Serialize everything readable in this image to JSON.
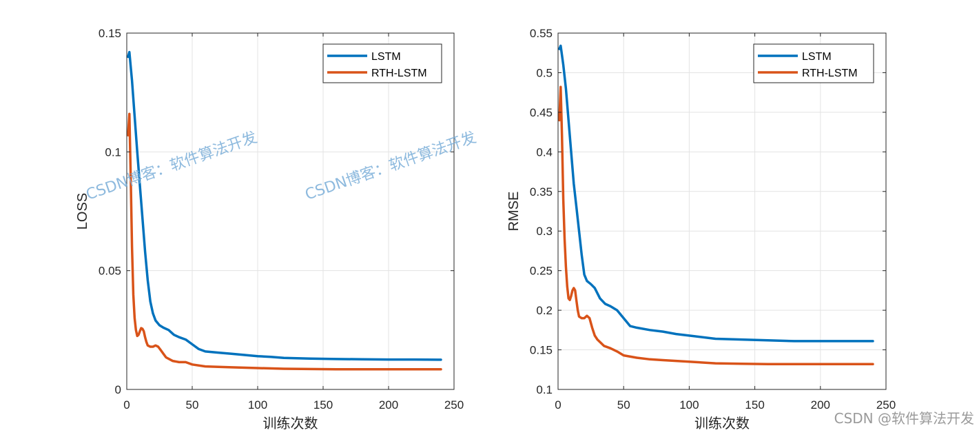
{
  "chart_data": [
    {
      "type": "line",
      "title": "",
      "xlabel": "训练次数",
      "ylabel": "LOSS",
      "xlim": [
        0,
        250
      ],
      "ylim": [
        0,
        0.15
      ],
      "xticks": [
        0,
        50,
        100,
        150,
        200,
        250
      ],
      "yticks": [
        0,
        0.05,
        0.1,
        0.15
      ],
      "xtick_labels": [
        "0",
        "50",
        "100",
        "150",
        "200",
        "250"
      ],
      "ytick_labels": [
        "0",
        "0.05",
        "0.1",
        "0.15"
      ],
      "grid": true,
      "legend_position": "top-right",
      "series": [
        {
          "name": "LSTM",
          "color": "#0072BD",
          "x": [
            1,
            2,
            4,
            6,
            8,
            10,
            12,
            14,
            16,
            18,
            20,
            22,
            25,
            28,
            32,
            36,
            40,
            45,
            50,
            55,
            60,
            70,
            80,
            90,
            100,
            110,
            120,
            140,
            160,
            180,
            200,
            220,
            240
          ],
          "y": [
            0.14,
            0.142,
            0.13,
            0.115,
            0.1,
            0.086,
            0.072,
            0.058,
            0.046,
            0.037,
            0.032,
            0.029,
            0.027,
            0.026,
            0.025,
            0.023,
            0.022,
            0.021,
            0.019,
            0.017,
            0.016,
            0.0155,
            0.015,
            0.0145,
            0.014,
            0.0137,
            0.0133,
            0.013,
            0.0128,
            0.0127,
            0.0126,
            0.0126,
            0.0125
          ]
        },
        {
          "name": "RTH-LSTM",
          "color": "#D95319",
          "x": [
            1,
            2,
            3,
            4,
            5,
            6,
            7,
            8,
            9,
            10,
            11,
            12,
            13,
            14,
            15,
            16,
            18,
            20,
            22,
            24,
            26,
            28,
            30,
            35,
            40,
            45,
            50,
            60,
            70,
            80,
            100,
            120,
            140,
            160,
            180,
            200,
            220,
            240
          ],
          "y": [
            0.107,
            0.116,
            0.09,
            0.06,
            0.04,
            0.03,
            0.025,
            0.0225,
            0.023,
            0.0245,
            0.0258,
            0.0255,
            0.0245,
            0.022,
            0.02,
            0.0185,
            0.018,
            0.018,
            0.0185,
            0.018,
            0.0165,
            0.015,
            0.0135,
            0.012,
            0.0115,
            0.0115,
            0.0105,
            0.0097,
            0.0095,
            0.0093,
            0.009,
            0.0087,
            0.0086,
            0.0085,
            0.0085,
            0.0085,
            0.0085,
            0.0085
          ]
        }
      ]
    },
    {
      "type": "line",
      "title": "",
      "xlabel": "训练次数",
      "ylabel": "RMSE",
      "xlim": [
        0,
        250
      ],
      "ylim": [
        0.1,
        0.55
      ],
      "xticks": [
        0,
        50,
        100,
        150,
        200,
        250
      ],
      "yticks": [
        0.1,
        0.15,
        0.2,
        0.25,
        0.3,
        0.35,
        0.4,
        0.45,
        0.5,
        0.55
      ],
      "xtick_labels": [
        "0",
        "50",
        "100",
        "150",
        "200",
        "250"
      ],
      "ytick_labels": [
        "0.1",
        "0.15",
        "0.2",
        "0.25",
        "0.3",
        "0.35",
        "0.4",
        "0.45",
        "0.5",
        "0.55"
      ],
      "grid": true,
      "legend_position": "top-right",
      "series": [
        {
          "name": "LSTM",
          "color": "#0072BD",
          "x": [
            1,
            2,
            4,
            6,
            8,
            10,
            12,
            14,
            16,
            18,
            20,
            22,
            25,
            28,
            32,
            36,
            40,
            45,
            50,
            55,
            60,
            70,
            80,
            90,
            100,
            120,
            140,
            160,
            180,
            200,
            220,
            240
          ],
          "y": [
            0.53,
            0.534,
            0.51,
            0.48,
            0.44,
            0.4,
            0.36,
            0.33,
            0.3,
            0.27,
            0.245,
            0.237,
            0.233,
            0.228,
            0.215,
            0.208,
            0.205,
            0.2,
            0.19,
            0.18,
            0.178,
            0.175,
            0.173,
            0.17,
            0.168,
            0.164,
            0.163,
            0.162,
            0.161,
            0.161,
            0.161,
            0.161
          ]
        },
        {
          "name": "RTH-LSTM",
          "color": "#D95319",
          "x": [
            1,
            2,
            3,
            4,
            5,
            6,
            7,
            8,
            9,
            10,
            11,
            12,
            13,
            14,
            15,
            16,
            18,
            20,
            22,
            24,
            26,
            28,
            30,
            35,
            40,
            45,
            50,
            60,
            70,
            80,
            100,
            120,
            140,
            160,
            180,
            200,
            220,
            240
          ],
          "y": [
            0.44,
            0.482,
            0.42,
            0.34,
            0.29,
            0.255,
            0.23,
            0.215,
            0.213,
            0.218,
            0.225,
            0.228,
            0.225,
            0.212,
            0.2,
            0.192,
            0.19,
            0.19,
            0.193,
            0.19,
            0.178,
            0.168,
            0.163,
            0.155,
            0.152,
            0.148,
            0.143,
            0.14,
            0.138,
            0.137,
            0.135,
            0.133,
            0.1325,
            0.132,
            0.132,
            0.132,
            0.132,
            0.132
          ]
        }
      ]
    }
  ],
  "watermarks": [
    "CSDN博客：软件算法开发",
    "CSDN博客：软件算法开发"
  ],
  "footer": "CSDN @软件算法开发"
}
